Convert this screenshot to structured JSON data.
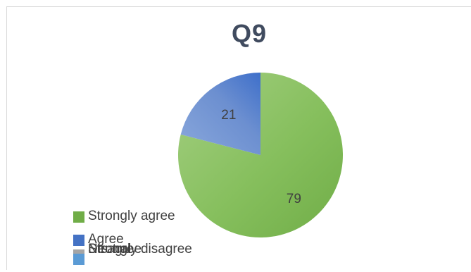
{
  "chart_data": {
    "type": "pie",
    "title": "Q9",
    "categories": [
      "Strongly agree",
      "Agree",
      "Neutral",
      "Disagree",
      "Strongly disagree"
    ],
    "values": [
      79,
      21,
      0,
      0,
      0
    ],
    "colors": [
      "#70ad47",
      "#4472c4",
      "#a5a5a5",
      "#ffc000",
      "#5b9bd5"
    ],
    "legend_position": "bottom-left",
    "data_labels": true
  }
}
